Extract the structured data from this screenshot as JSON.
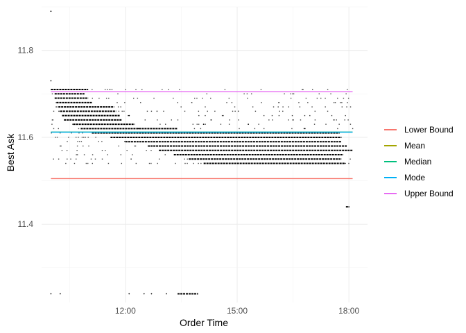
{
  "chart_data": {
    "type": "scatter",
    "xlabel": "Order Time",
    "ylabel": "Best Ask",
    "x_unit": "hour of day",
    "xlim": [
      9.75,
      18.5
    ],
    "ylim": [
      11.22,
      11.9
    ],
    "x_ticks": [
      {
        "value": 12,
        "label": "12:00"
      },
      {
        "value": 15,
        "label": "15:00"
      },
      {
        "value": 18,
        "label": "18:00"
      }
    ],
    "y_ticks": [
      {
        "value": 11.4,
        "label": "11.4"
      },
      {
        "value": 11.6,
        "label": "11.6"
      },
      {
        "value": 11.8,
        "label": "11.8"
      }
    ],
    "grid": true,
    "legend_position": "right",
    "x_start": 10.0,
    "x_end": 18.1,
    "reference_lines": [
      {
        "name": "Lower Bound",
        "value": 11.505,
        "color": "#F8766D"
      },
      {
        "name": "Mean",
        "value": 11.612,
        "color": "#A3A500"
      },
      {
        "name": "Median",
        "value": 11.612,
        "color": "#00BF7D"
      },
      {
        "name": "Mode",
        "value": 11.612,
        "color": "#00B0F6"
      },
      {
        "name": "Upper Bound",
        "value": 11.705,
        "color": "#E76BF3"
      }
    ],
    "scatter_segments": [
      {
        "y": 11.71,
        "x0": 10.0,
        "x1": 11.0
      },
      {
        "y": 11.7,
        "x0": 10.1,
        "x1": 10.9
      },
      {
        "y": 11.69,
        "x0": 10.1,
        "x1": 11.0
      },
      {
        "y": 11.68,
        "x0": 10.15,
        "x1": 11.1
      },
      {
        "y": 11.67,
        "x0": 10.2,
        "x1": 11.7
      },
      {
        "y": 11.66,
        "x0": 10.25,
        "x1": 11.75
      },
      {
        "y": 11.65,
        "x0": 10.3,
        "x1": 11.85
      },
      {
        "y": 11.64,
        "x0": 10.35,
        "x1": 11.9
      },
      {
        "y": 11.63,
        "x0": 10.6,
        "x1": 12.25
      },
      {
        "y": 11.62,
        "x0": 10.8,
        "x1": 13.4
      },
      {
        "y": 11.61,
        "x0": 11.1,
        "x1": 17.75
      },
      {
        "y": 11.6,
        "x0": 11.6,
        "x1": 17.8
      },
      {
        "y": 11.59,
        "x0": 12.0,
        "x1": 17.8
      },
      {
        "y": 11.58,
        "x0": 12.6,
        "x1": 17.95
      },
      {
        "y": 11.57,
        "x0": 12.9,
        "x1": 18.1
      },
      {
        "y": 11.56,
        "x0": 13.3,
        "x1": 17.85
      },
      {
        "y": 11.55,
        "x0": 13.7,
        "x1": 17.8
      },
      {
        "y": 11.54,
        "x0": 14.1,
        "x1": 17.9
      },
      {
        "y": 11.44,
        "x0": 17.92,
        "x1": 18.0
      },
      {
        "y": 11.24,
        "x0": 13.4,
        "x1": 13.95
      }
    ],
    "scatter_points": [
      {
        "x": 10.0,
        "y": 11.89
      },
      {
        "x": 10.0,
        "y": 11.73
      },
      {
        "x": 10.0,
        "y": 11.24
      },
      {
        "x": 10.25,
        "y": 11.24
      },
      {
        "x": 12.1,
        "y": 11.24
      },
      {
        "x": 12.5,
        "y": 11.24
      },
      {
        "x": 12.7,
        "y": 11.24
      },
      {
        "x": 13.1,
        "y": 11.24
      },
      {
        "x": 12.1,
        "y": 11.65
      },
      {
        "x": 12.35,
        "y": 11.62
      },
      {
        "x": 14.1,
        "y": 11.63
      },
      {
        "x": 14.3,
        "y": 11.64
      },
      {
        "x": 15.3,
        "y": 11.63
      },
      {
        "x": 16.8,
        "y": 11.62
      },
      {
        "x": 17.6,
        "y": 11.64
      },
      {
        "x": 17.9,
        "y": 11.54
      },
      {
        "x": 18.0,
        "y": 11.44
      }
    ]
  }
}
